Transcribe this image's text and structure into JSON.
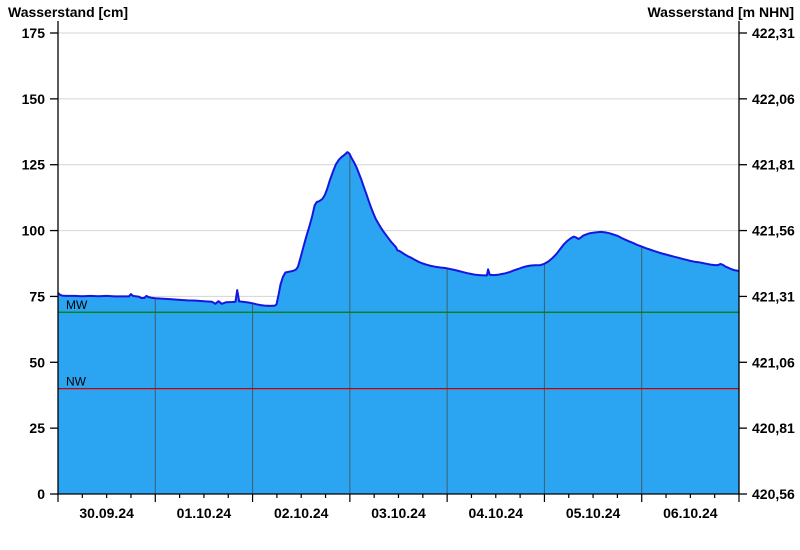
{
  "titles": {
    "left": "Wasserstand [cm]",
    "right": "Wasserstand [m NHN]"
  },
  "chart_data": {
    "type": "area",
    "title": "Wasserstand",
    "xlabel": "",
    "ylabel_left": "Wasserstand [cm]",
    "ylabel_right": "Wasserstand [m NHN]",
    "x_axis": {
      "unit": "hours since 30.09.24 00:00",
      "range_hours": [
        0,
        168
      ],
      "day_labels": [
        "30.09.24",
        "01.10.24",
        "02.10.24",
        "03.10.24",
        "04.10.24",
        "05.10.24",
        "06.10.24"
      ],
      "major_tick_every_hours": 24,
      "minor_tick_every_hours": 6
    },
    "y_axis_left": {
      "min": 0,
      "max": 175,
      "ticks": [
        0,
        25,
        50,
        75,
        100,
        125,
        150,
        175
      ],
      "unit": "cm"
    },
    "y_axis_right": {
      "tick_labels_bottom_up": [
        "420,56",
        "420,81",
        "421,06",
        "421,31",
        "421,56",
        "421,81",
        "422,06",
        "422,31"
      ],
      "unit": "m NHN"
    },
    "reference_lines": [
      {
        "label": "MW",
        "value_cm": 69,
        "color": "#008000"
      },
      {
        "label": "NW",
        "value_cm": 40,
        "color": "#cc0000"
      }
    ],
    "series": [
      {
        "name": "Wasserstand",
        "points_hour_cm": [
          [
            0,
            76.3
          ],
          [
            0.5,
            75.6
          ],
          [
            1,
            75.3
          ],
          [
            2,
            75.2
          ],
          [
            4,
            75.2
          ],
          [
            6,
            75.1
          ],
          [
            8,
            75.2
          ],
          [
            10,
            75.1
          ],
          [
            12,
            75.2
          ],
          [
            14,
            75.0
          ],
          [
            16,
            75.0
          ],
          [
            17.5,
            75.0
          ],
          [
            18,
            75.9
          ],
          [
            18.5,
            75.2
          ],
          [
            20,
            74.9
          ],
          [
            20.5,
            74.4
          ],
          [
            21.3,
            74.4
          ],
          [
            21.8,
            75.2
          ],
          [
            22.3,
            74.8
          ],
          [
            23,
            74.5
          ],
          [
            24,
            74.3
          ],
          [
            26,
            74.1
          ],
          [
            28,
            73.9
          ],
          [
            30,
            73.7
          ],
          [
            32,
            73.5
          ],
          [
            34,
            73.4
          ],
          [
            36,
            73.2
          ],
          [
            38,
            73.0
          ],
          [
            38.8,
            72.2
          ],
          [
            39.6,
            73.2
          ],
          [
            40.4,
            72.2
          ],
          [
            41.5,
            72.8
          ],
          [
            43,
            72.9
          ],
          [
            43.8,
            73.0
          ],
          [
            44.2,
            77.4
          ],
          [
            44.7,
            73.1
          ],
          [
            46,
            72.9
          ],
          [
            47,
            72.7
          ],
          [
            48,
            72.4
          ],
          [
            49,
            72.0
          ],
          [
            50,
            71.7
          ],
          [
            51,
            71.5
          ],
          [
            52.5,
            71.4
          ],
          [
            53.5,
            71.5
          ],
          [
            53.9,
            72.0
          ],
          [
            54.4,
            75.5
          ],
          [
            54.9,
            79.5
          ],
          [
            55.5,
            82.5
          ],
          [
            56.1,
            84.1
          ],
          [
            57,
            84.4
          ],
          [
            58,
            84.7
          ],
          [
            58.7,
            85.2
          ],
          [
            59.2,
            86.3
          ],
          [
            59.8,
            89.5
          ],
          [
            60.5,
            93.5
          ],
          [
            61.2,
            97.5
          ],
          [
            62,
            101.5
          ],
          [
            62.7,
            105.5
          ],
          [
            63.3,
            109.5
          ],
          [
            63.8,
            110.8
          ],
          [
            64.5,
            111.2
          ],
          [
            65.2,
            112.0
          ],
          [
            65.8,
            113.4
          ],
          [
            66.4,
            115.8
          ],
          [
            67,
            118.8
          ],
          [
            67.8,
            122.2
          ],
          [
            68.5,
            125.0
          ],
          [
            69.3,
            126.9
          ],
          [
            70,
            128.0
          ],
          [
            70.8,
            128.9
          ],
          [
            71.4,
            129.8
          ],
          [
            71.9,
            129.2
          ],
          [
            72.4,
            127.6
          ],
          [
            73,
            126.0
          ],
          [
            73.6,
            124.2
          ],
          [
            74.2,
            121.8
          ],
          [
            74.8,
            119.5
          ],
          [
            75.4,
            116.8
          ],
          [
            76,
            114.2
          ],
          [
            76.6,
            111.5
          ],
          [
            77.2,
            108.9
          ],
          [
            77.8,
            106.5
          ],
          [
            78.4,
            104.4
          ],
          [
            79,
            102.8
          ],
          [
            79.6,
            101.2
          ],
          [
            80.2,
            99.8
          ],
          [
            80.9,
            98.4
          ],
          [
            81.5,
            97.1
          ],
          [
            82.1,
            95.9
          ],
          [
            82.8,
            94.7
          ],
          [
            83.4,
            93.6
          ],
          [
            83.7,
            92.5
          ],
          [
            84.3,
            92.2
          ],
          [
            85,
            91.5
          ],
          [
            85.7,
            90.8
          ],
          [
            86.4,
            90.2
          ],
          [
            87.1,
            89.7
          ],
          [
            88,
            88.9
          ],
          [
            89,
            88.1
          ],
          [
            90,
            87.5
          ],
          [
            91,
            87.0
          ],
          [
            92,
            86.6
          ],
          [
            93,
            86.3
          ],
          [
            94.3,
            86.0
          ],
          [
            95.5,
            85.8
          ],
          [
            96.7,
            85.4
          ],
          [
            98,
            85.0
          ],
          [
            99,
            84.6
          ],
          [
            100,
            84.2
          ],
          [
            101,
            83.8
          ],
          [
            102,
            83.5
          ],
          [
            103,
            83.2
          ],
          [
            104,
            83.1
          ],
          [
            105,
            83.0
          ],
          [
            105.8,
            83.0
          ],
          [
            106.1,
            85.3
          ],
          [
            106.5,
            83.2
          ],
          [
            107.5,
            83.1
          ],
          [
            108.5,
            83.2
          ],
          [
            109.5,
            83.5
          ],
          [
            110.5,
            83.8
          ],
          [
            111.5,
            84.3
          ],
          [
            112.5,
            84.9
          ],
          [
            113.5,
            85.4
          ],
          [
            114.5,
            86.0
          ],
          [
            115.5,
            86.4
          ],
          [
            116.5,
            86.7
          ],
          [
            117.5,
            86.8
          ],
          [
            119,
            86.9
          ],
          [
            120,
            87.4
          ],
          [
            121,
            88.3
          ],
          [
            122,
            89.6
          ],
          [
            123,
            91.2
          ],
          [
            124,
            93.2
          ],
          [
            124.8,
            94.8
          ],
          [
            125.6,
            96.0
          ],
          [
            126.4,
            97.0
          ],
          [
            127.2,
            97.7
          ],
          [
            127.8,
            97.4
          ],
          [
            128.4,
            96.8
          ],
          [
            129,
            97.4
          ],
          [
            129.6,
            98.1
          ],
          [
            130.4,
            98.6
          ],
          [
            131.2,
            99.0
          ],
          [
            132,
            99.2
          ],
          [
            133,
            99.4
          ],
          [
            134,
            99.5
          ],
          [
            135,
            99.3
          ],
          [
            136,
            99.0
          ],
          [
            137,
            98.5
          ],
          [
            138,
            98.0
          ],
          [
            139,
            97.2
          ],
          [
            140,
            96.5
          ],
          [
            141,
            95.8
          ],
          [
            142,
            95.2
          ],
          [
            143,
            94.5
          ],
          [
            144,
            93.9
          ],
          [
            145,
            93.3
          ],
          [
            146,
            92.8
          ],
          [
            147,
            92.3
          ],
          [
            148,
            91.8
          ],
          [
            149,
            91.3
          ],
          [
            150,
            90.9
          ],
          [
            151,
            90.5
          ],
          [
            152,
            90.1
          ],
          [
            153,
            89.7
          ],
          [
            154,
            89.3
          ],
          [
            155,
            88.9
          ],
          [
            156,
            88.5
          ],
          [
            157,
            88.2
          ],
          [
            158,
            88.0
          ],
          [
            159,
            87.7
          ],
          [
            160,
            87.4
          ],
          [
            161,
            87.1
          ],
          [
            162,
            86.9
          ],
          [
            162.8,
            86.9
          ],
          [
            163.4,
            87.3
          ],
          [
            164,
            87.0
          ],
          [
            164.6,
            86.4
          ],
          [
            165.3,
            85.9
          ],
          [
            166,
            85.4
          ],
          [
            166.8,
            85.0
          ],
          [
            167.5,
            84.8
          ],
          [
            168,
            84.6
          ]
        ]
      }
    ],
    "colors": {
      "area_fill": "#2ba4f2",
      "series_line": "#1616e0",
      "h_gridline": "#d4d4d4",
      "v_gridline_in_fill": "#3f5f6b",
      "axis": "#000000",
      "tick_label": "#000000",
      "mw_line": "#008000",
      "nw_line": "#cc0000",
      "background": "#ffffff"
    },
    "legend": "none",
    "grid": "horizontal light gray full width; vertical day separators visible only inside filled area"
  }
}
